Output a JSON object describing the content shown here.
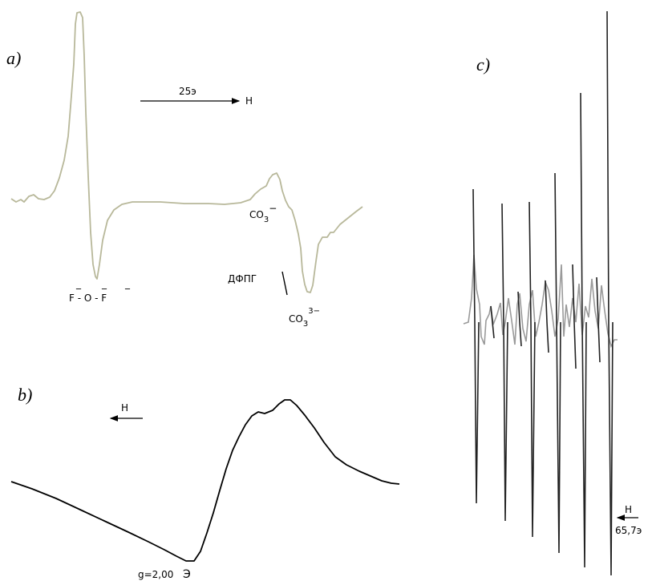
{
  "panels": {
    "a": {
      "label": "a)",
      "scale_text": "25э",
      "field_label": "H",
      "peak_label_fof": "F - O - F",
      "peak_label_co3_minus": "CO3−",
      "peak_label_dpph": "ДФПГ",
      "peak_label_co3_3minus": "CO3 3−"
    },
    "b": {
      "label": "b)",
      "field_label": "H",
      "g_label": "g=2,00",
      "g_unit": "Э"
    },
    "c": {
      "label": "c)",
      "field_label": "H",
      "scale_text": "65,7э"
    }
  },
  "colors": {
    "trace_a": "#b8b89a",
    "trace_b": "#000000",
    "trace_c_grey": "#9a9a9a",
    "trace_c_dark": "#222222"
  }
}
